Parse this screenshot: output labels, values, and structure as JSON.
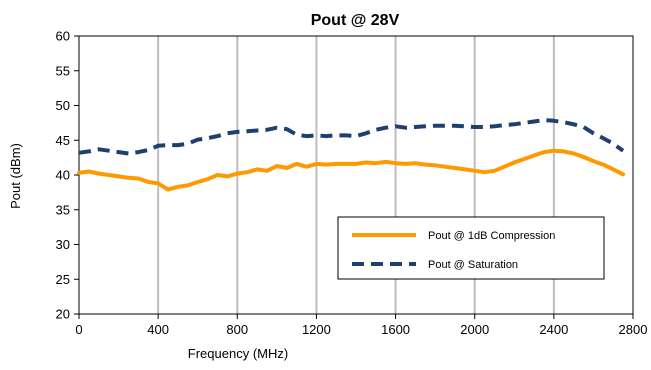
{
  "chart_data": {
    "type": "line",
    "title": "Pout @ 28V",
    "xlabel": "Frequency (MHz)",
    "ylabel": "Pout (dBm)",
    "xlim": [
      0,
      2800
    ],
    "ylim": [
      20,
      60
    ],
    "xticks": [
      0,
      400,
      800,
      1200,
      1600,
      2000,
      2400,
      2800
    ],
    "yticks": [
      20,
      25,
      30,
      35,
      40,
      45,
      50,
      55,
      60
    ],
    "x_grid": true,
    "y_grid": false,
    "legend_position": "lower-right",
    "series": [
      {
        "name": "Pout @ 1dB Compression",
        "color": "#FF9900",
        "style": "solid",
        "x": [
          0,
          50,
          100,
          150,
          200,
          250,
          300,
          350,
          400,
          450,
          500,
          550,
          600,
          650,
          700,
          750,
          800,
          850,
          900,
          950,
          1000,
          1050,
          1100,
          1150,
          1200,
          1250,
          1300,
          1350,
          1400,
          1450,
          1500,
          1550,
          1600,
          1650,
          1700,
          1750,
          1800,
          1850,
          1900,
          1950,
          2000,
          2050,
          2100,
          2150,
          2200,
          2250,
          2300,
          2350,
          2400,
          2450,
          2500,
          2550,
          2600,
          2650,
          2700,
          2750
        ],
        "y": [
          40.3,
          40.5,
          40.2,
          40.0,
          39.8,
          39.6,
          39.5,
          39.0,
          38.8,
          37.9,
          38.3,
          38.5,
          39.0,
          39.4,
          40.0,
          39.8,
          40.2,
          40.4,
          40.8,
          40.6,
          41.3,
          41.0,
          41.6,
          41.2,
          41.6,
          41.5,
          41.6,
          41.6,
          41.6,
          41.8,
          41.7,
          41.9,
          41.7,
          41.6,
          41.7,
          41.5,
          41.4,
          41.2,
          41.0,
          40.8,
          40.6,
          40.4,
          40.6,
          41.2,
          41.8,
          42.3,
          42.8,
          43.3,
          43.5,
          43.4,
          43.1,
          42.6,
          42.0,
          41.5,
          40.8,
          40.1
        ]
      },
      {
        "name": "Pout @ Saturation",
        "color": "#1F3F6E",
        "style": "dashed",
        "x": [
          0,
          50,
          100,
          150,
          200,
          250,
          300,
          350,
          400,
          450,
          500,
          550,
          600,
          650,
          700,
          750,
          800,
          850,
          900,
          950,
          1000,
          1050,
          1100,
          1150,
          1200,
          1250,
          1300,
          1350,
          1400,
          1450,
          1500,
          1550,
          1600,
          1650,
          1700,
          1750,
          1800,
          1850,
          1900,
          1950,
          2000,
          2050,
          2100,
          2150,
          2200,
          2250,
          2300,
          2350,
          2400,
          2450,
          2500,
          2550,
          2600,
          2650,
          2700,
          2750
        ],
        "y": [
          43.2,
          43.4,
          43.7,
          43.5,
          43.3,
          43.1,
          43.3,
          43.6,
          44.2,
          44.3,
          44.3,
          44.5,
          45.1,
          45.3,
          45.6,
          46.0,
          46.2,
          46.3,
          46.4,
          46.5,
          46.8,
          46.6,
          45.8,
          45.6,
          45.7,
          45.6,
          45.7,
          45.7,
          45.6,
          46.0,
          46.5,
          46.8,
          47.0,
          46.8,
          46.9,
          47.0,
          47.1,
          47.1,
          47.1,
          47.0,
          46.9,
          46.9,
          47.0,
          47.2,
          47.3,
          47.5,
          47.7,
          47.9,
          47.8,
          47.6,
          47.3,
          46.9,
          46.0,
          45.3,
          44.5,
          43.5
        ]
      }
    ]
  }
}
